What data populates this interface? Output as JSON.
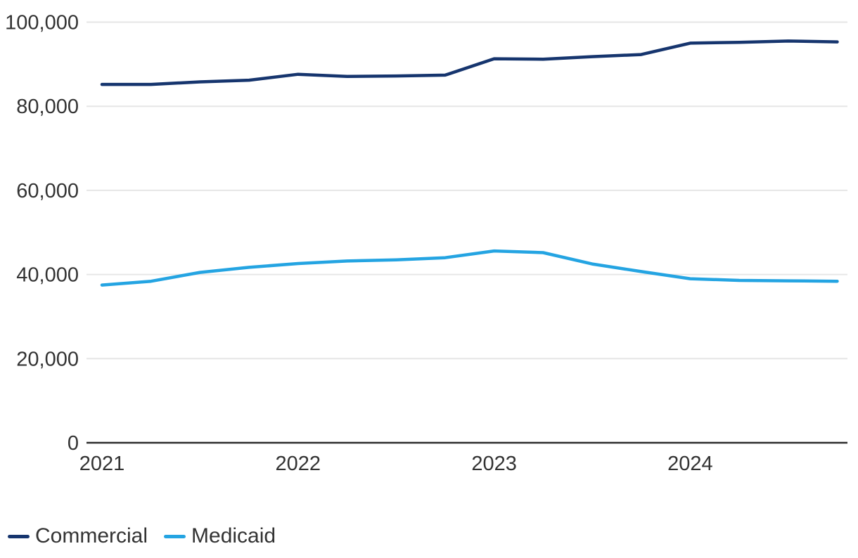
{
  "chart_data": {
    "type": "line",
    "title": "",
    "xlabel": "",
    "ylabel": "",
    "x": [
      2021.0,
      2021.25,
      2021.5,
      2021.75,
      2022.0,
      2022.25,
      2022.5,
      2022.75,
      2023.0,
      2023.25,
      2023.5,
      2023.75,
      2024.0,
      2024.25,
      2024.5,
      2024.75
    ],
    "x_unit": "year-quarter",
    "series": [
      {
        "name": "Commercial",
        "color": "#16356E",
        "values": [
          85200,
          85200,
          85800,
          86200,
          87600,
          87100,
          87200,
          87400,
          91300,
          91200,
          91800,
          92300,
          95000,
          95200,
          95500,
          95300
        ]
      },
      {
        "name": "Medicaid",
        "color": "#24A4E2",
        "values": [
          37500,
          38400,
          40500,
          41700,
          42600,
          43200,
          43500,
          44000,
          45600,
          45200,
          42500,
          40700,
          39000,
          38600,
          38500,
          38400
        ]
      }
    ],
    "x_ticks": [
      {
        "value": 2021,
        "label": "2021"
      },
      {
        "value": 2022,
        "label": "2022"
      },
      {
        "value": 2023,
        "label": "2023"
      },
      {
        "value": 2024,
        "label": "2024"
      }
    ],
    "y_ticks": [
      {
        "value": 0,
        "label": "0"
      },
      {
        "value": 20000,
        "label": "20,000"
      },
      {
        "value": 40000,
        "label": "40,000"
      },
      {
        "value": 60000,
        "label": "60,000"
      },
      {
        "value": 80000,
        "label": "80,000"
      },
      {
        "value": 100000,
        "label": "100,000"
      }
    ],
    "ylim": [
      0,
      100000
    ],
    "xlim": [
      2021.0,
      2024.75
    ],
    "grid": "horizontal",
    "legend_position": "bottom-left"
  },
  "legend": {
    "items": [
      {
        "label": "Commercial",
        "color": "#16356E"
      },
      {
        "label": "Medicaid",
        "color": "#24A4E2"
      }
    ]
  },
  "colors": {
    "background": "#ffffff",
    "gridline": "#e6e6e6",
    "axis_line": "#2e2e2e",
    "tick_text": "#333333",
    "commercial": "#16356E",
    "medicaid": "#24A4E2"
  }
}
